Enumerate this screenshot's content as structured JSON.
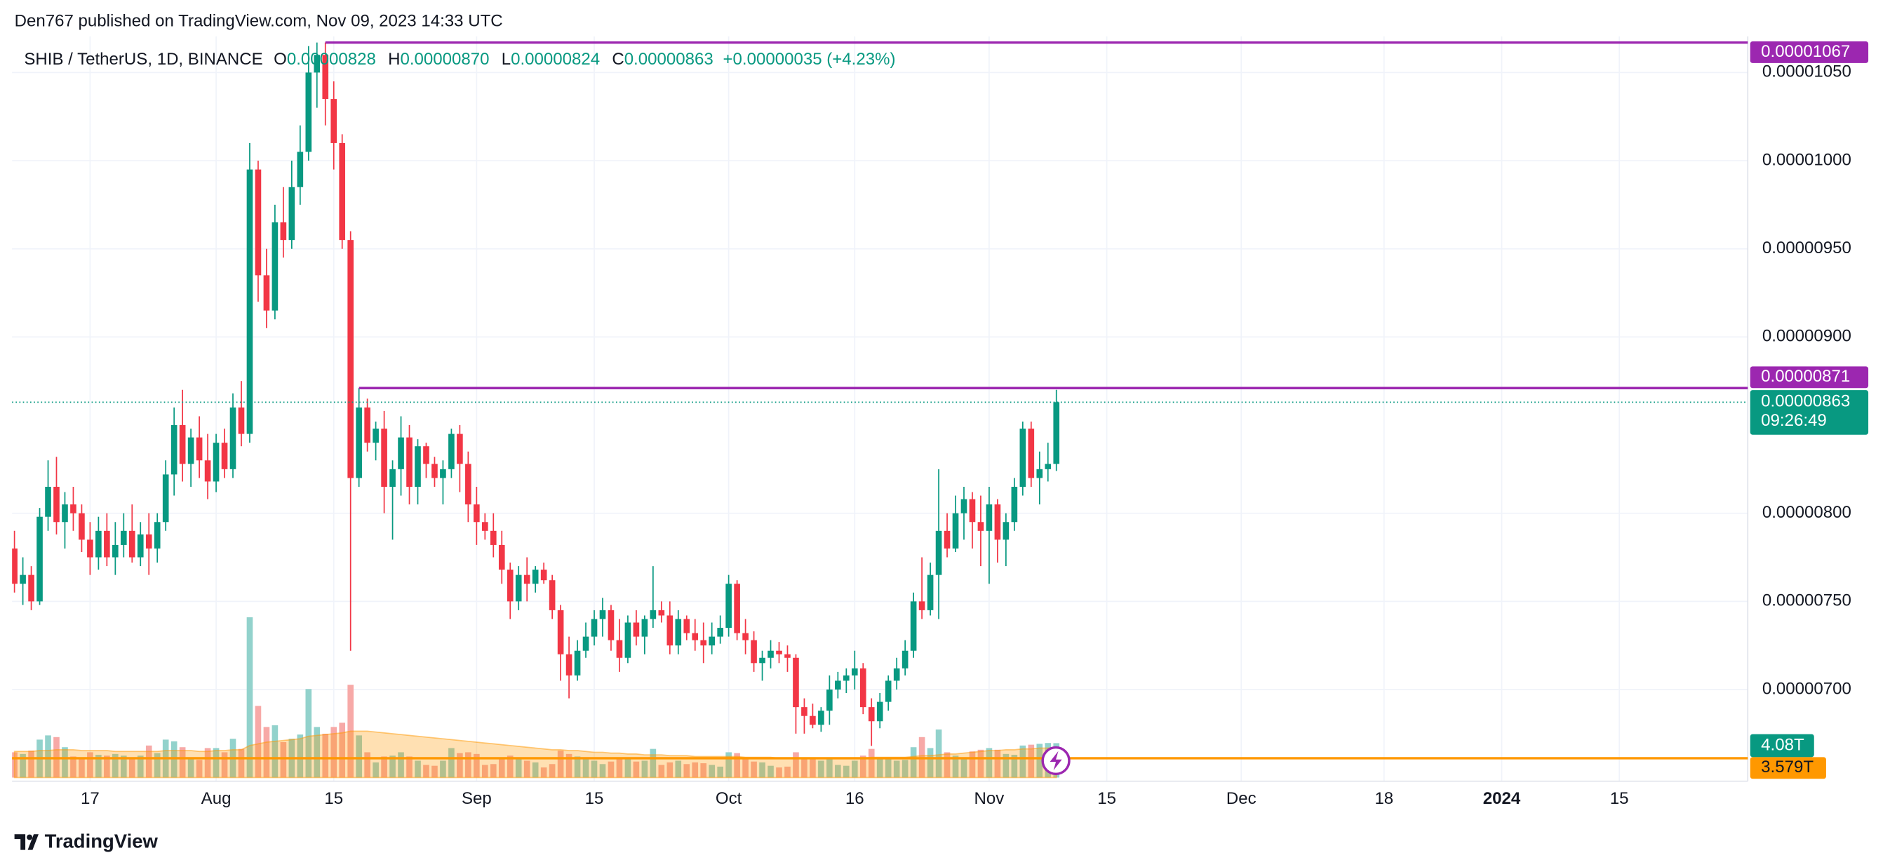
{
  "header": "Den767 published on TradingView.com, Nov 09, 2023 14:33 UTC",
  "footer": "TradingView",
  "chart_data": {
    "type": "candlestick",
    "legend": {
      "symbol": "SHIB / TetherUS, 1D, BINANCE",
      "fields": [
        {
          "label": "O",
          "value": "0.00000828"
        },
        {
          "label": "H",
          "value": "0.00000870"
        },
        {
          "label": "L",
          "value": "0.00000824"
        },
        {
          "label": "C",
          "value": "0.00000863"
        }
      ],
      "change": "+0.00000035 (+4.23%)"
    },
    "up_color": "#089981",
    "down_color": "#f23645",
    "volume_up_color": "#92d2cc",
    "volume_down_color": "#f7a9a7",
    "volume_ma_color": "#ff9800",
    "level_color": "#9c27b0",
    "grid": true,
    "xlim": [
      "07-08",
      "01-30"
    ],
    "xticks": [
      {
        "value": "07-17",
        "label": "17"
      },
      {
        "value": "08-01",
        "label": "Aug"
      },
      {
        "value": "08-15",
        "label": "15"
      },
      {
        "value": "09-01",
        "label": "Sep"
      },
      {
        "value": "09-15",
        "label": "15"
      },
      {
        "value": "10-01",
        "label": "Oct"
      },
      {
        "value": "10-16",
        "label": "16"
      },
      {
        "value": "11-01",
        "label": "Nov"
      },
      {
        "value": "11-15",
        "label": "15"
      },
      {
        "value": "12-01",
        "label": "Dec"
      },
      {
        "value": "12-18",
        "label": "18"
      },
      {
        "value": "01-01",
        "label": "2024"
      },
      {
        "value": "01-15",
        "label": "15"
      }
    ],
    "ylim": [
      6.48e-06,
      1.0705e-05
    ],
    "yticks": [
      {
        "value": 7e-06,
        "label": "0.00000700"
      },
      {
        "value": 7.5e-06,
        "label": "0.00000750"
      },
      {
        "value": 8e-06,
        "label": "0.00000800"
      },
      {
        "value": 9e-06,
        "label": "0.00000900"
      },
      {
        "value": 9.5e-06,
        "label": "0.00000950"
      },
      {
        "value": 1e-05,
        "label": "0.00001000"
      },
      {
        "value": 1.05e-05,
        "label": "0.00001050"
      }
    ],
    "levels": [
      {
        "value": 1.067e-05,
        "label": "0.00001067",
        "from": "08-14"
      },
      {
        "value": 8.71e-06,
        "label": "0.00000871",
        "from": "08-18"
      }
    ],
    "last_price": {
      "value": 8.63e-06,
      "label": "0.00000863",
      "countdown": "09:26:49"
    },
    "volume_label": "4.08T",
    "volume_ma_label": "3.579T",
    "x": [
      "07-08",
      "07-09",
      "07-10",
      "07-11",
      "07-12",
      "07-13",
      "07-14",
      "07-15",
      "07-16",
      "07-17",
      "07-18",
      "07-19",
      "07-20",
      "07-21",
      "07-22",
      "07-23",
      "07-24",
      "07-25",
      "07-26",
      "07-27",
      "07-28",
      "07-29",
      "07-30",
      "07-31",
      "08-01",
      "08-02",
      "08-03",
      "08-04",
      "08-05",
      "08-06",
      "08-07",
      "08-08",
      "08-09",
      "08-10",
      "08-11",
      "08-12",
      "08-13",
      "08-14",
      "08-15",
      "08-16",
      "08-17",
      "08-18",
      "08-19",
      "08-20",
      "08-21",
      "08-22",
      "08-23",
      "08-24",
      "08-25",
      "08-26",
      "08-27",
      "08-28",
      "08-29",
      "08-30",
      "08-31",
      "09-01",
      "09-02",
      "09-03",
      "09-04",
      "09-05",
      "09-06",
      "09-07",
      "09-08",
      "09-09",
      "09-10",
      "09-11",
      "09-12",
      "09-13",
      "09-14",
      "09-15",
      "09-16",
      "09-17",
      "09-18",
      "09-19",
      "09-20",
      "09-21",
      "09-22",
      "09-23",
      "09-24",
      "09-25",
      "09-26",
      "09-27",
      "09-28",
      "09-29",
      "09-30",
      "10-01",
      "10-02",
      "10-03",
      "10-04",
      "10-05",
      "10-06",
      "10-07",
      "10-08",
      "10-09",
      "10-10",
      "10-11",
      "10-12",
      "10-13",
      "10-14",
      "10-15",
      "10-16",
      "10-17",
      "10-18",
      "10-19",
      "10-20",
      "10-21",
      "10-22",
      "10-23",
      "10-24",
      "10-25",
      "10-26",
      "10-27",
      "10-28",
      "10-29",
      "10-30",
      "10-31",
      "11-01",
      "11-02",
      "11-03",
      "11-04",
      "11-05",
      "11-06",
      "11-07",
      "11-08",
      "11-09"
    ],
    "open": [
      7.8e-06,
      7.6e-06,
      7.65e-06,
      7.5e-06,
      7.98e-06,
      8.15e-06,
      7.95e-06,
      8.05e-06,
      8e-06,
      7.85e-06,
      7.75e-06,
      7.9e-06,
      7.75e-06,
      7.82e-06,
      7.9e-06,
      7.75e-06,
      7.88e-06,
      7.8e-06,
      7.95e-06,
      8.22e-06,
      8.5e-06,
      8.28e-06,
      8.43e-06,
      8.3e-06,
      8.18e-06,
      8.4e-06,
      8.25e-06,
      8.6e-06,
      8.45e-06,
      9.95e-06,
      9.35e-06,
      9.15e-06,
      9.65e-06,
      9.55e-06,
      9.85e-06,
      1.005e-05,
      1.05e-05,
      1.06e-05,
      1.035e-05,
      1.01e-05,
      9.55e-06,
      8.2e-06,
      8.6e-06,
      8.4e-06,
      8.48e-06,
      8.15e-06,
      8.25e-06,
      8.43e-06,
      8.15e-06,
      8.38e-06,
      8.28e-06,
      8.2e-06,
      8.25e-06,
      8.45e-06,
      8.28e-06,
      8.05e-06,
      7.95e-06,
      7.9e-06,
      7.82e-06,
      7.68e-06,
      7.5e-06,
      7.65e-06,
      7.6e-06,
      7.68e-06,
      7.62e-06,
      7.45e-06,
      7.2e-06,
      7.08e-06,
      7.22e-06,
      7.3e-06,
      7.4e-06,
      7.45e-06,
      7.28e-06,
      7.18e-06,
      7.38e-06,
      7.3e-06,
      7.4e-06,
      7.45e-06,
      7.42e-06,
      7.25e-06,
      7.4e-06,
      7.32e-06,
      7.28e-06,
      7.25e-06,
      7.3e-06,
      7.35e-06,
      7.6e-06,
      7.32e-06,
      7.28e-06,
      7.15e-06,
      7.18e-06,
      7.22e-06,
      7.2e-06,
      7.18e-06,
      6.9e-06,
      6.85e-06,
      6.8e-06,
      6.88e-06,
      7e-06,
      7.05e-06,
      7.08e-06,
      7.12e-06,
      6.9e-06,
      6.82e-06,
      6.93e-06,
      7.05e-06,
      7.12e-06,
      7.22e-06,
      7.5e-06,
      7.45e-06,
      7.65e-06,
      7.9e-06,
      7.8e-06,
      8e-06,
      8.08e-06,
      7.95e-06,
      7.9e-06,
      8.05e-06,
      7.85e-06,
      7.95e-06,
      8.15e-06,
      8.48e-06,
      8.2e-06,
      8.25e-06,
      8.28e-06
    ],
    "high": [
      7.9e-06,
      7.75e-06,
      7.7e-06,
      8.03e-06,
      8.3e-06,
      8.32e-06,
      8.12e-06,
      8.15e-06,
      8.05e-06,
      7.95e-06,
      7.98e-06,
      8e-06,
      7.95e-06,
      8e-06,
      8.05e-06,
      7.95e-06,
      8e-06,
      8e-06,
      8.3e-06,
      8.6e-06,
      8.7e-06,
      8.48e-06,
      8.55e-06,
      8.45e-06,
      8.45e-06,
      8.48e-06,
      8.68e-06,
      8.75e-06,
      1.01e-05,
      1e-05,
      9.5e-06,
      9.75e-06,
      9.85e-06,
      1e-05,
      1.02e-05,
      1.065e-05,
      1.067e-05,
      1.067e-05,
      1.045e-05,
      1.015e-05,
      9.6e-06,
      8.71e-06,
      8.65e-06,
      8.52e-06,
      8.58e-06,
      8.3e-06,
      8.55e-06,
      8.5e-06,
      8.42e-06,
      8.4e-06,
      8.32e-06,
      8.3e-06,
      8.48e-06,
      8.5e-06,
      8.35e-06,
      8.15e-06,
      8e-06,
      8e-06,
      7.9e-06,
      7.72e-06,
      7.7e-06,
      7.75e-06,
      7.7e-06,
      7.72e-06,
      7.65e-06,
      7.48e-06,
      7.3e-06,
      7.28e-06,
      7.38e-06,
      7.45e-06,
      7.52e-06,
      7.48e-06,
      7.4e-06,
      7.42e-06,
      7.45e-06,
      7.42e-06,
      7.7e-06,
      7.5e-06,
      7.5e-06,
      7.45e-06,
      7.42e-06,
      7.4e-06,
      7.38e-06,
      7.38e-06,
      7.42e-06,
      7.65e-06,
      7.62e-06,
      7.4e-06,
      7.33e-06,
      7.22e-06,
      7.28e-06,
      7.27e-06,
      7.25e-06,
      7.2e-06,
      6.95e-06,
      6.92e-06,
      6.9e-06,
      7.08e-06,
      7.1e-06,
      7.12e-06,
      7.22e-06,
      7.15e-06,
      6.95e-06,
      6.98e-06,
      7.08e-06,
      7.18e-06,
      7.28e-06,
      7.55e-06,
      7.75e-06,
      7.72e-06,
      8.25e-06,
      8e-06,
      8.1e-06,
      8.15e-06,
      8.12e-06,
      8.1e-06,
      8.15e-06,
      8.08e-06,
      8e-06,
      8.2e-06,
      8.52e-06,
      8.52e-06,
      8.35e-06,
      8.4e-06,
      8.7e-06
    ],
    "low": [
      7.55e-06,
      7.48e-06,
      7.45e-06,
      7.48e-06,
      7.9e-06,
      7.88e-06,
      7.8e-06,
      7.9e-06,
      7.78e-06,
      7.65e-06,
      7.68e-06,
      7.7e-06,
      7.65e-06,
      7.75e-06,
      7.72e-06,
      7.7e-06,
      7.65e-06,
      7.72e-06,
      7.9e-06,
      8.1e-06,
      8.18e-06,
      8.15e-06,
      8.2e-06,
      8.08e-06,
      8.12e-06,
      8.2e-06,
      8.2e-06,
      8.38e-06,
      8.4e-06,
      9.2e-06,
      9.05e-06,
      9.1e-06,
      9.45e-06,
      9.5e-06,
      9.75e-06,
      1e-05,
      1.03e-05,
      1.02e-05,
      9.95e-06,
      9.5e-06,
      7.22e-06,
      8.15e-06,
      8.35e-06,
      8.3e-06,
      8e-06,
      7.85e-06,
      8.1e-06,
      8.05e-06,
      8.05e-06,
      8.2e-06,
      8.15e-06,
      8.05e-06,
      8.2e-06,
      8.12e-06,
      7.95e-06,
      7.82e-06,
      7.85e-06,
      7.75e-06,
      7.6e-06,
      7.4e-06,
      7.45e-06,
      7.5e-06,
      7.55e-06,
      7.6e-06,
      7.4e-06,
      7.05e-06,
      6.95e-06,
      7.05e-06,
      7.18e-06,
      7.25e-06,
      7.3e-06,
      7.22e-06,
      7.1e-06,
      7.15e-06,
      7.25e-06,
      7.2e-06,
      7.35e-06,
      7.38e-06,
      7.2e-06,
      7.2e-06,
      7.28e-06,
      7.22e-06,
      7.15e-06,
      7.2e-06,
      7.26e-06,
      7.3e-06,
      7.28e-06,
      7.2e-06,
      7.1e-06,
      7.05e-06,
      7.12e-06,
      7.15e-06,
      7.1e-06,
      6.75e-06,
      6.75e-06,
      6.78e-06,
      6.76e-06,
      6.8e-06,
      6.95e-06,
      6.98e-06,
      7e-06,
      6.86e-06,
      6.68e-06,
      6.78e-06,
      6.88e-06,
      7e-06,
      7.08e-06,
      7.18e-06,
      7.4e-06,
      7.42e-06,
      7.4e-06,
      7.75e-06,
      7.78e-06,
      7.85e-06,
      7.8e-06,
      7.7e-06,
      7.6e-06,
      7.72e-06,
      7.7e-06,
      7.9e-06,
      8.1e-06,
      8.15e-06,
      8.05e-06,
      8.18e-06,
      8.24e-06
    ],
    "close": [
      7.6e-06,
      7.65e-06,
      7.5e-06,
      7.98e-06,
      8.15e-06,
      7.95e-06,
      8.05e-06,
      8e-06,
      7.85e-06,
      7.75e-06,
      7.9e-06,
      7.75e-06,
      7.82e-06,
      7.9e-06,
      7.75e-06,
      7.88e-06,
      7.8e-06,
      7.95e-06,
      8.22e-06,
      8.5e-06,
      8.28e-06,
      8.43e-06,
      8.3e-06,
      8.18e-06,
      8.4e-06,
      8.25e-06,
      8.6e-06,
      8.45e-06,
      9.95e-06,
      9.35e-06,
      9.15e-06,
      9.65e-06,
      9.55e-06,
      9.85e-06,
      1.005e-05,
      1.05e-05,
      1.06e-05,
      1.035e-05,
      1.01e-05,
      9.55e-06,
      8.2e-06,
      8.6e-06,
      8.4e-06,
      8.48e-06,
      8.15e-06,
      8.25e-06,
      8.43e-06,
      8.15e-06,
      8.38e-06,
      8.28e-06,
      8.2e-06,
      8.25e-06,
      8.45e-06,
      8.28e-06,
      8.05e-06,
      7.95e-06,
      7.9e-06,
      7.82e-06,
      7.68e-06,
      7.5e-06,
      7.65e-06,
      7.6e-06,
      7.68e-06,
      7.62e-06,
      7.45e-06,
      7.2e-06,
      7.08e-06,
      7.22e-06,
      7.3e-06,
      7.4e-06,
      7.45e-06,
      7.28e-06,
      7.18e-06,
      7.38e-06,
      7.3e-06,
      7.4e-06,
      7.45e-06,
      7.42e-06,
      7.25e-06,
      7.4e-06,
      7.32e-06,
      7.28e-06,
      7.25e-06,
      7.3e-06,
      7.35e-06,
      7.6e-06,
      7.32e-06,
      7.28e-06,
      7.15e-06,
      7.18e-06,
      7.22e-06,
      7.2e-06,
      7.18e-06,
      6.9e-06,
      6.85e-06,
      6.8e-06,
      6.88e-06,
      7e-06,
      7.05e-06,
      7.08e-06,
      7.12e-06,
      6.9e-06,
      6.82e-06,
      6.93e-06,
      7.05e-06,
      7.12e-06,
      7.22e-06,
      7.5e-06,
      7.45e-06,
      7.65e-06,
      7.9e-06,
      7.8e-06,
      8e-06,
      8.08e-06,
      7.95e-06,
      7.9e-06,
      8.05e-06,
      7.85e-06,
      7.95e-06,
      8.15e-06,
      8.48e-06,
      8.2e-06,
      8.25e-06,
      8.28e-06,
      8.63e-06
    ],
    "volume": [
      3.0,
      2.8,
      3.2,
      4.5,
      5.0,
      4.8,
      3.6,
      2.5,
      2.4,
      3.0,
      2.7,
      2.6,
      2.8,
      2.6,
      2.2,
      2.6,
      3.8,
      2.9,
      4.5,
      4.3,
      3.6,
      2.3,
      2.1,
      3.5,
      3.5,
      3.0,
      4.6,
      3.4,
      19.0,
      8.5,
      6.0,
      6.2,
      4.2,
      4.6,
      5.1,
      10.5,
      6.0,
      5.2,
      6.0,
      6.5,
      11.0,
      5.0,
      3.0,
      1.8,
      2.5,
      2.6,
      3.0,
      2.5,
      2.0,
      1.5,
      1.4,
      2.0,
      3.5,
      2.9,
      3.0,
      2.8,
      1.5,
      1.6,
      2.4,
      2.6,
      2.2,
      2.0,
      1.8,
      1.2,
      1.6,
      3.2,
      2.8,
      2.5,
      2.2,
      2.0,
      1.6,
      1.9,
      2.4,
      2.3,
      1.9,
      2.0,
      3.4,
      1.5,
      1.8,
      2.0,
      1.6,
      1.8,
      1.7,
      1.5,
      1.3,
      3.0,
      2.9,
      2.2,
      1.9,
      1.8,
      1.4,
      1.2,
      1.3,
      3.0,
      2.4,
      2.2,
      2.0,
      2.3,
      1.5,
      1.4,
      2.0,
      2.6,
      3.4,
      2.2,
      2.4,
      2.0,
      2.1,
      3.6,
      4.8,
      3.5,
      5.7,
      3.0,
      2.6,
      2.4,
      3.1,
      3.3,
      3.5,
      3.3,
      2.8,
      2.7,
      3.8,
      3.9,
      4.0,
      4.1,
      4.08
    ],
    "volume_ma": [
      3.1,
      3.1,
      3.1,
      3.2,
      3.2,
      3.3,
      3.3,
      3.3,
      3.2,
      3.2,
      3.2,
      3.2,
      3.1,
      3.1,
      3.1,
      3.1,
      3.1,
      3.1,
      3.2,
      3.2,
      3.2,
      3.2,
      3.1,
      3.1,
      3.2,
      3.2,
      3.3,
      3.3,
      3.8,
      4.0,
      4.2,
      4.3,
      4.4,
      4.5,
      4.6,
      4.9,
      5.0,
      5.1,
      5.2,
      5.3,
      5.5,
      5.5,
      5.5,
      5.4,
      5.3,
      5.2,
      5.1,
      5.0,
      4.9,
      4.8,
      4.7,
      4.6,
      4.5,
      4.4,
      4.3,
      4.2,
      4.1,
      4.0,
      3.9,
      3.8,
      3.7,
      3.6,
      3.5,
      3.4,
      3.3,
      3.3,
      3.2,
      3.2,
      3.1,
      3.0,
      3.0,
      2.9,
      2.9,
      2.8,
      2.8,
      2.7,
      2.7,
      2.7,
      2.6,
      2.6,
      2.6,
      2.5,
      2.5,
      2.5,
      2.5,
      2.5,
      2.5,
      2.4,
      2.4,
      2.4,
      2.4,
      2.3,
      2.3,
      2.3,
      2.3,
      2.3,
      2.3,
      2.3,
      2.3,
      2.3,
      2.3,
      2.3,
      2.4,
      2.4,
      2.4,
      2.4,
      2.4,
      2.5,
      2.6,
      2.6,
      2.7,
      2.8,
      2.8,
      2.9,
      3.0,
      3.1,
      3.2,
      3.2,
      3.3,
      3.3,
      3.4,
      3.4,
      3.5,
      3.5,
      3.579
    ]
  }
}
